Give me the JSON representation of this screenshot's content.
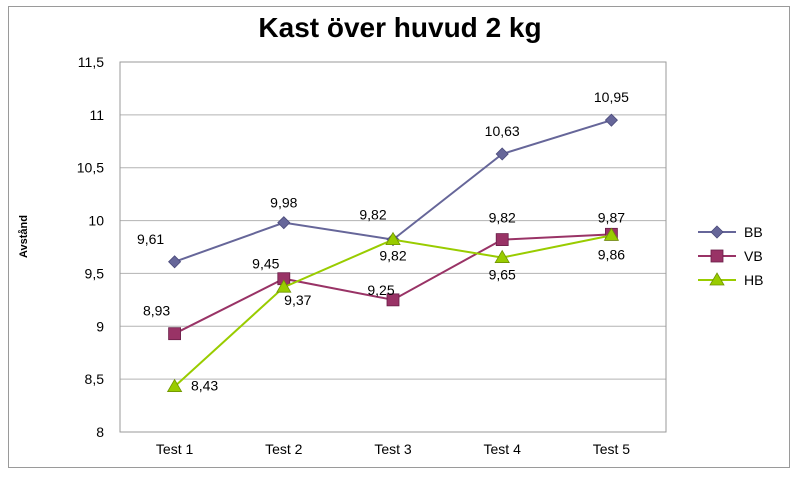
{
  "chart_data": {
    "type": "line",
    "title": "Kast över huvud 2 kg",
    "ylabel": "Avstånd",
    "xlabel": "",
    "categories": [
      "Test 1",
      "Test 2",
      "Test 3",
      "Test 4",
      "Test 5"
    ],
    "ylim": [
      8,
      11.5
    ],
    "yticks": [
      8,
      8.5,
      9,
      9.5,
      10,
      10.5,
      11,
      11.5
    ],
    "ytick_labels": [
      "8",
      "8,5",
      "9",
      "9,5",
      "10",
      "10,5",
      "11",
      "11,5"
    ],
    "grid": true,
    "legend_position": "right",
    "series": [
      {
        "name": "BB",
        "values": [
          9.61,
          9.98,
          9.82,
          10.63,
          10.95
        ],
        "labels": [
          "9,61",
          "9,98",
          "9,82",
          "10,63",
          "10,95"
        ],
        "color": "#666699",
        "marker": "diamond"
      },
      {
        "name": "VB",
        "values": [
          8.93,
          9.45,
          9.25,
          9.82,
          9.87
        ],
        "labels": [
          "8,93",
          "9,45",
          "9,25",
          "9,82",
          "9,87"
        ],
        "color": "#993366",
        "marker": "square"
      },
      {
        "name": "HB",
        "values": [
          8.43,
          9.37,
          9.82,
          9.65,
          9.86
        ],
        "labels": [
          "8,43",
          "9,37",
          "9,82",
          "9,65",
          "9,86"
        ],
        "color": "#99cc00",
        "marker": "triangle"
      }
    ]
  }
}
